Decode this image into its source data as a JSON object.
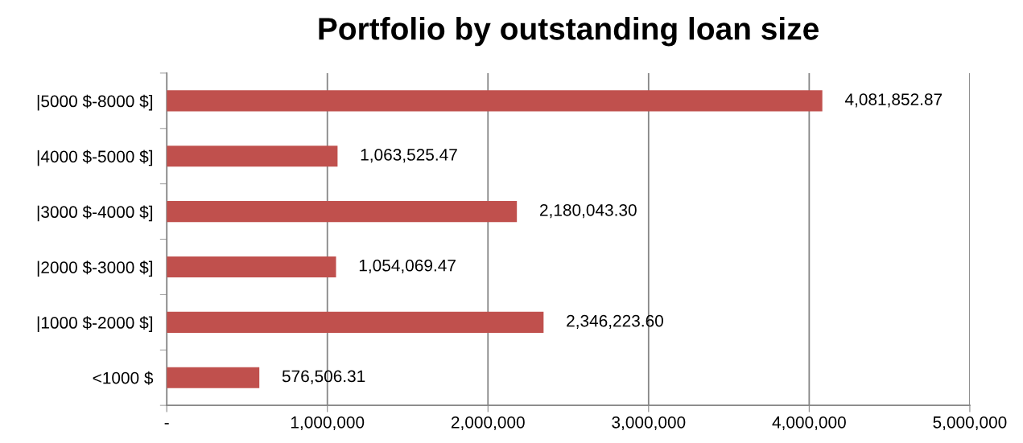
{
  "chart_data": {
    "type": "bar",
    "orientation": "horizontal",
    "title": "Portfolio by outstanding loan size",
    "categories": [
      "|5000 $-8000 $]",
      "|4000 $-5000 $]",
      "|3000 $-4000 $]",
      "|2000 $-3000 $]",
      "|1000 $-2000 $]",
      "<1000 $"
    ],
    "values": [
      4081852.87,
      1063525.47,
      2180043.3,
      1054069.47,
      2346223.6,
      576506.31
    ],
    "value_labels": [
      "4,081,852.87",
      "1,063,525.47",
      "2,180,043.30",
      "1,054,069.47",
      "2,346,223.60",
      "576,506.31"
    ],
    "color": "#c0504d",
    "xlim": [
      0,
      5000000
    ],
    "xticks": [
      {
        "value": 0,
        "label": "-"
      },
      {
        "value": 1000000,
        "label": "1,000,000"
      },
      {
        "value": 2000000,
        "label": "2,000,000"
      },
      {
        "value": 3000000,
        "label": "3,000,000"
      },
      {
        "value": 4000000,
        "label": "4,000,000"
      },
      {
        "value": 5000000,
        "label": "5,000,000"
      }
    ],
    "grid": "x"
  }
}
